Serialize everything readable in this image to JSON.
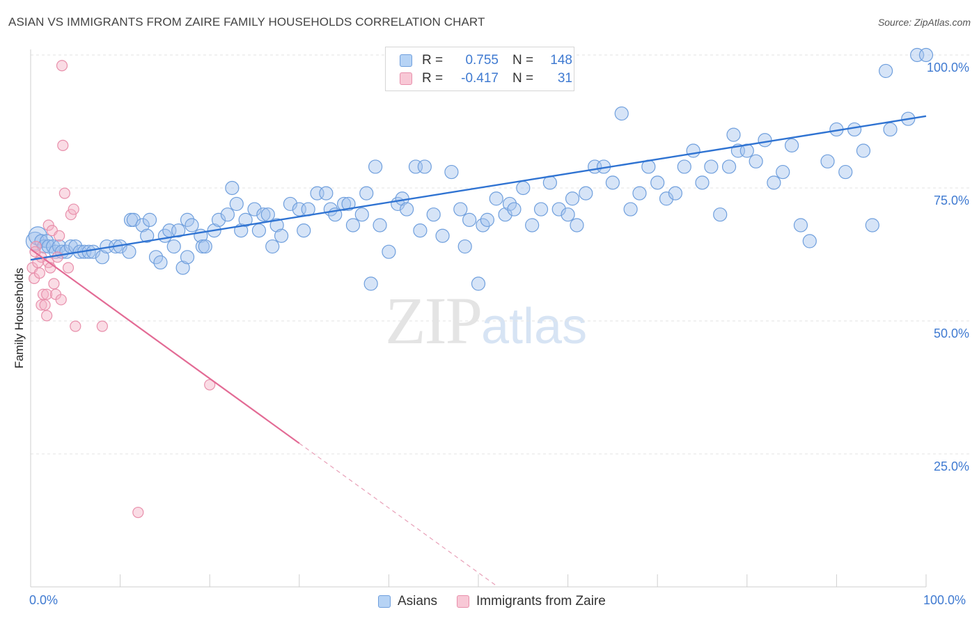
{
  "header": {
    "title": "ASIAN VS IMMIGRANTS FROM ZAIRE FAMILY HOUSEHOLDS CORRELATION CHART",
    "source": "Source: ZipAtlas.com"
  },
  "legend": {
    "rows": [
      {
        "r_label": "R =",
        "r_value": "0.755",
        "n_label": "N =",
        "n_value": "148",
        "color": "#6f9fdd"
      },
      {
        "r_label": "R =",
        "r_value": "-0.417",
        "n_label": "N =",
        "n_value": "31",
        "color": "#e88fab"
      }
    ]
  },
  "bottom_legend": {
    "asians": "Asians",
    "zaire": "Immigrants from Zaire"
  },
  "watermark": {
    "zip": "ZIP",
    "atlas": "atlas"
  },
  "axes": {
    "ylabel": "Family Households",
    "x_min_label": "0.0%",
    "x_max_label": "100.0%",
    "y_ticks": [
      "100.0%",
      "75.0%",
      "50.0%",
      "25.0%"
    ]
  },
  "chart_data": {
    "type": "scatter",
    "xlabel": "",
    "ylabel": "Family Households",
    "xlim": [
      0,
      100
    ],
    "ylim": [
      0,
      102
    ],
    "grid": true,
    "series": [
      {
        "name": "Asians",
        "color": "#6f9fdd",
        "trend": {
          "x0": 0,
          "y0": 61.5,
          "x1": 100,
          "y1": 88.5
        },
        "points": [
          [
            0.5,
            65
          ],
          [
            0.8,
            66
          ],
          [
            1.2,
            65
          ],
          [
            1.5,
            64
          ],
          [
            1.8,
            65
          ],
          [
            2.0,
            64
          ],
          [
            2.5,
            64
          ],
          [
            2.8,
            63
          ],
          [
            3.2,
            64
          ],
          [
            3.5,
            63
          ],
          [
            4.0,
            63
          ],
          [
            4.5,
            64
          ],
          [
            5.0,
            64
          ],
          [
            5.5,
            63
          ],
          [
            6.0,
            63
          ],
          [
            6.5,
            63
          ],
          [
            7.0,
            63
          ],
          [
            8.0,
            62
          ],
          [
            8.5,
            64
          ],
          [
            9.5,
            64
          ],
          [
            10.0,
            64
          ],
          [
            11.0,
            63
          ],
          [
            11.2,
            69
          ],
          [
            11.5,
            69
          ],
          [
            12.5,
            68
          ],
          [
            13.0,
            66
          ],
          [
            13.3,
            69
          ],
          [
            14.0,
            62
          ],
          [
            14.5,
            61
          ],
          [
            15.0,
            66
          ],
          [
            15.5,
            67
          ],
          [
            16.0,
            64
          ],
          [
            16.5,
            67
          ],
          [
            17.0,
            60
          ],
          [
            17.5,
            62
          ],
          [
            17.5,
            69
          ],
          [
            18.0,
            68
          ],
          [
            19.0,
            66
          ],
          [
            19.2,
            64
          ],
          [
            19.5,
            64
          ],
          [
            20.5,
            67
          ],
          [
            21.0,
            69
          ],
          [
            22.0,
            70
          ],
          [
            22.5,
            75
          ],
          [
            23.0,
            72
          ],
          [
            23.5,
            67
          ],
          [
            24.0,
            69
          ],
          [
            25.0,
            71
          ],
          [
            25.5,
            67
          ],
          [
            26.0,
            70
          ],
          [
            26.5,
            70
          ],
          [
            27.0,
            64
          ],
          [
            27.5,
            68
          ],
          [
            28.0,
            66
          ],
          [
            29.0,
            72
          ],
          [
            30.0,
            71
          ],
          [
            30.5,
            67
          ],
          [
            31.0,
            71
          ],
          [
            32.0,
            74
          ],
          [
            33.0,
            74
          ],
          [
            33.5,
            71
          ],
          [
            34.0,
            70
          ],
          [
            35.0,
            72
          ],
          [
            35.5,
            72
          ],
          [
            36.0,
            68
          ],
          [
            37.0,
            70
          ],
          [
            37.5,
            74
          ],
          [
            38.0,
            57
          ],
          [
            38.5,
            79
          ],
          [
            39.0,
            68
          ],
          [
            40.0,
            63
          ],
          [
            41.0,
            72
          ],
          [
            41.5,
            73
          ],
          [
            42.0,
            71
          ],
          [
            43.0,
            79
          ],
          [
            43.5,
            67
          ],
          [
            44.0,
            79
          ],
          [
            45.0,
            70
          ],
          [
            46.0,
            66
          ],
          [
            47.0,
            78
          ],
          [
            48.0,
            71
          ],
          [
            48.5,
            64
          ],
          [
            49.0,
            69
          ],
          [
            50.0,
            57
          ],
          [
            50.5,
            68
          ],
          [
            51.0,
            69
          ],
          [
            52.0,
            73
          ],
          [
            53.0,
            70
          ],
          [
            53.5,
            72
          ],
          [
            54.0,
            71
          ],
          [
            55.0,
            75
          ],
          [
            56.0,
            68
          ],
          [
            57.0,
            71
          ],
          [
            58.0,
            76
          ],
          [
            59.0,
            71
          ],
          [
            60.0,
            70
          ],
          [
            60.5,
            73
          ],
          [
            61.0,
            68
          ],
          [
            62.0,
            74
          ],
          [
            63.0,
            79
          ],
          [
            64.0,
            79
          ],
          [
            65.0,
            76
          ],
          [
            66.0,
            89
          ],
          [
            67.0,
            71
          ],
          [
            68.0,
            74
          ],
          [
            69.0,
            79
          ],
          [
            70.0,
            76
          ],
          [
            71.0,
            73
          ],
          [
            72.0,
            74
          ],
          [
            73.0,
            79
          ],
          [
            74.0,
            82
          ],
          [
            75.0,
            76
          ],
          [
            76.0,
            79
          ],
          [
            77.0,
            70
          ],
          [
            78.0,
            79
          ],
          [
            78.5,
            85
          ],
          [
            79.0,
            82
          ],
          [
            80.0,
            82
          ],
          [
            81.0,
            80
          ],
          [
            82.0,
            84
          ],
          [
            83.0,
            76
          ],
          [
            84.0,
            78
          ],
          [
            85.0,
            83
          ],
          [
            86.0,
            68
          ],
          [
            87.0,
            65
          ],
          [
            89.0,
            80
          ],
          [
            90.0,
            86
          ],
          [
            91.0,
            78
          ],
          [
            92.0,
            86
          ],
          [
            93.0,
            82
          ],
          [
            94.0,
            68
          ],
          [
            95.5,
            97
          ],
          [
            96.0,
            86
          ],
          [
            98.0,
            88
          ],
          [
            99.0,
            100
          ],
          [
            100.0,
            100
          ]
        ]
      },
      {
        "name": "Immigrants from Zaire",
        "color": "#e88fab",
        "trend": {
          "x0": 0,
          "y0": 63.5,
          "x1": 30,
          "y1": 27.0,
          "dash_to_x": 52
        },
        "points": [
          [
            0.2,
            60
          ],
          [
            0.4,
            58
          ],
          [
            0.6,
            64
          ],
          [
            0.8,
            61
          ],
          [
            1.0,
            59
          ],
          [
            1.2,
            62
          ],
          [
            1.2,
            53
          ],
          [
            1.4,
            55
          ],
          [
            1.6,
            53
          ],
          [
            1.8,
            51
          ],
          [
            1.8,
            55
          ],
          [
            2.0,
            68
          ],
          [
            2.0,
            61
          ],
          [
            2.2,
            60
          ],
          [
            2.4,
            67
          ],
          [
            2.6,
            57
          ],
          [
            2.8,
            55
          ],
          [
            3.0,
            62
          ],
          [
            3.2,
            66
          ],
          [
            3.4,
            54
          ],
          [
            3.5,
            98
          ],
          [
            3.6,
            83
          ],
          [
            3.8,
            74
          ],
          [
            4.2,
            60
          ],
          [
            4.5,
            70
          ],
          [
            4.8,
            71
          ],
          [
            5.0,
            49
          ],
          [
            8.0,
            49
          ],
          [
            20.0,
            38
          ],
          [
            12.0,
            14
          ],
          [
            0.5,
            63
          ]
        ]
      }
    ]
  }
}
